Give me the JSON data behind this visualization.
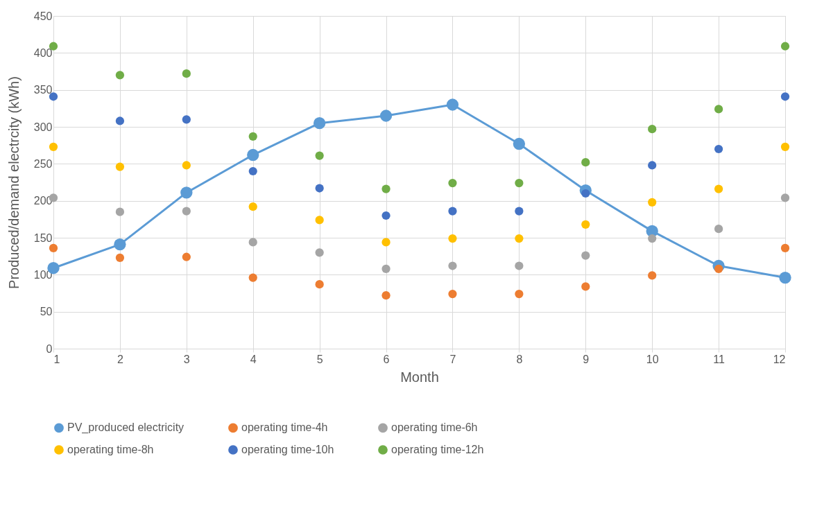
{
  "chart_data": {
    "type": "scatter",
    "xlabel": "Month",
    "ylabel": "Produced/demand electrcity (kWh)",
    "x": [
      1,
      2,
      3,
      4,
      5,
      6,
      7,
      8,
      9,
      10,
      11,
      12
    ],
    "xlim": [
      1,
      12
    ],
    "xticks": [
      1,
      2,
      3,
      4,
      5,
      6,
      7,
      8,
      9,
      10,
      11,
      12
    ],
    "ylim": [
      0,
      450
    ],
    "yticks": [
      0,
      50,
      100,
      150,
      200,
      250,
      300,
      350,
      400,
      450
    ],
    "grid": true,
    "legend": "bottom",
    "marker": "circle",
    "series": [
      {
        "name": "PV_produced electricity",
        "type": "line",
        "line_style": "solid",
        "color": "#5b9bd5",
        "values": [
          109,
          141,
          211,
          262,
          305,
          315,
          330,
          277,
          214,
          159,
          112,
          96
        ]
      },
      {
        "name": "operating time-4h",
        "color": "#ed7d31",
        "values": [
          136,
          123,
          124,
          96,
          87,
          72,
          74,
          74,
          84,
          99,
          108,
          136
        ]
      },
      {
        "name": "operating time-6h",
        "color": "#a5a5a5",
        "values": [
          204,
          185,
          186,
          144,
          130,
          108,
          112,
          112,
          126,
          149,
          162,
          204
        ]
      },
      {
        "name": "operating time-8h",
        "color": "#ffc000",
        "values": [
          273,
          246,
          248,
          192,
          174,
          144,
          149,
          149,
          168,
          198,
          216,
          273
        ]
      },
      {
        "name": "operating time-10h",
        "color": "#4472c4",
        "values": [
          341,
          308,
          310,
          240,
          217,
          180,
          186,
          186,
          210,
          248,
          270,
          341
        ]
      },
      {
        "name": "operating time-12h",
        "color": "#70ad47",
        "values": [
          409,
          370,
          372,
          287,
          261,
          216,
          224,
          224,
          252,
          297,
          324,
          409
        ]
      }
    ]
  }
}
